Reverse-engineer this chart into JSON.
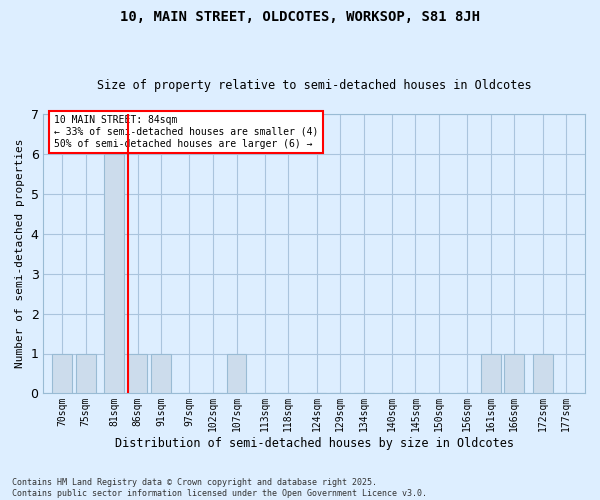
{
  "title1": "10, MAIN STREET, OLDCOTES, WORKSOP, S81 8JH",
  "title2": "Size of property relative to semi-detached houses in Oldcotes",
  "xlabel": "Distribution of semi-detached houses by size in Oldcotes",
  "ylabel": "Number of semi-detached properties",
  "footnote1": "Contains HM Land Registry data © Crown copyright and database right 2025.",
  "footnote2": "Contains public sector information licensed under the Open Government Licence v3.0.",
  "annotation_line1": "10 MAIN STREET: 84sqm",
  "annotation_line2": "← 33% of semi-detached houses are smaller (4)",
  "annotation_line3": "50% of semi-detached houses are larger (6) →",
  "property_size": 84,
  "bar_color": "#ccdcec",
  "bar_edge_color": "#99bbd4",
  "highlight_line_color": "red",
  "categories": [
    "70sqm",
    "75sqm",
    "81sqm",
    "86sqm",
    "91sqm",
    "97sqm",
    "102sqm",
    "107sqm",
    "113sqm",
    "118sqm",
    "124sqm",
    "129sqm",
    "134sqm",
    "140sqm",
    "145sqm",
    "150sqm",
    "156sqm",
    "161sqm",
    "166sqm",
    "172sqm",
    "177sqm"
  ],
  "values": [
    1,
    1,
    6,
    1,
    1,
    0,
    0,
    1,
    0,
    0,
    0,
    0,
    0,
    0,
    0,
    0,
    0,
    1,
    1,
    1,
    0
  ],
  "bar_centers": [
    70,
    75,
    81,
    86,
    91,
    97,
    102,
    107,
    113,
    118,
    124,
    129,
    134,
    140,
    145,
    150,
    156,
    161,
    166,
    172,
    177
  ],
  "bar_width": 4.2,
  "xlim": [
    66,
    181
  ],
  "ylim": [
    0,
    7
  ],
  "yticks": [
    0,
    1,
    2,
    3,
    4,
    5,
    6,
    7
  ],
  "grid_color": "#aac4dd",
  "bg_color": "#ddeeff",
  "annotation_box_color": "white",
  "annotation_box_edge": "red",
  "fig_width": 6.0,
  "fig_height": 5.0
}
